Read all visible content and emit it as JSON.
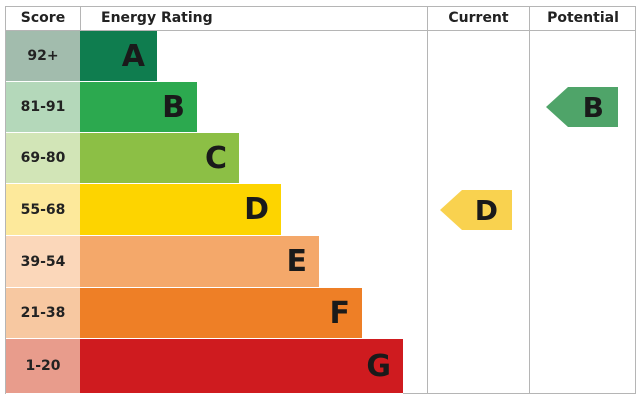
{
  "header": {
    "score": "Score",
    "rating": "Energy Rating",
    "current": "Current",
    "potential": "Potential"
  },
  "chart_data": {
    "type": "bar",
    "bands": [
      {
        "letter": "A",
        "score": "92+",
        "color": "#0f7d4f",
        "score_bg": "#a2bcad"
      },
      {
        "letter": "B",
        "score": "81-91",
        "color": "#2ca94f",
        "score_bg": "#b4d8ba"
      },
      {
        "letter": "C",
        "score": "69-80",
        "color": "#8cbf45",
        "score_bg": "#d2e5b7"
      },
      {
        "letter": "D",
        "score": "55-68",
        "color": "#fdd400",
        "score_bg": "#fde99b"
      },
      {
        "letter": "E",
        "score": "39-54",
        "color": "#f4a86a",
        "score_bg": "#fbd7ba"
      },
      {
        "letter": "F",
        "score": "21-38",
        "color": "#ee7f26",
        "score_bg": "#f7c8a1"
      },
      {
        "letter": "G",
        "score": "1-20",
        "color": "#cf1b1f",
        "score_bg": "#e89c8c"
      }
    ],
    "current": {
      "letter": "D",
      "color": "#f9d24f"
    },
    "potential": {
      "letter": "B",
      "color": "#4fa469"
    }
  }
}
